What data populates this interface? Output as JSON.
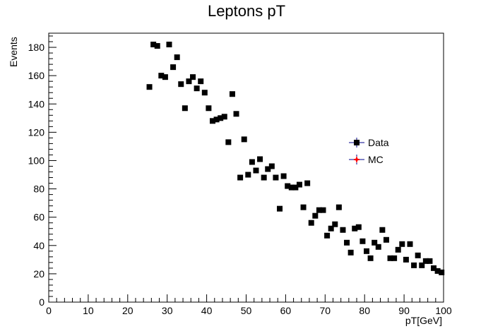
{
  "chart_data": {
    "type": "scatter",
    "title": "Leptons pT",
    "xlabel": "pT[GeV]",
    "ylabel": "Events",
    "xlim": [
      0,
      100
    ],
    "ylim": [
      0,
      190
    ],
    "xticks": [
      "0",
      "10",
      "20",
      "30",
      "40",
      "50",
      "60",
      "70",
      "80",
      "90",
      "100"
    ],
    "yticks": [
      "0",
      "20",
      "40",
      "60",
      "80",
      "100",
      "120",
      "140",
      "160",
      "180"
    ],
    "grid": false,
    "legend_position": "right",
    "series": [
      {
        "name": "Data",
        "color": "#000000",
        "marker": "square",
        "x": [
          25.5,
          26.5,
          27.5,
          28.5,
          29.5,
          30.5,
          31.5,
          32.5,
          33.5,
          34.5,
          35.5,
          36.5,
          37.5,
          38.5,
          39.5,
          40.5,
          41.5,
          42.5,
          43.5,
          44.5,
          45.5,
          46.5,
          47.5,
          48.5,
          49.5,
          50.5,
          51.5,
          52.5,
          53.5,
          54.5,
          55.5,
          56.5,
          57.5,
          58.5,
          59.5,
          60.5,
          61.5,
          62.5,
          63.5,
          64.5,
          65.5,
          66.5,
          67.5,
          68.5,
          69.5,
          70.5,
          71.5,
          72.5,
          73.5,
          74.5,
          75.5,
          76.5,
          77.5,
          78.5,
          79.5,
          80.5,
          81.5,
          82.5,
          83.5,
          84.5,
          85.5,
          86.5,
          87.5,
          88.5,
          89.5,
          90.5,
          91.5,
          92.5,
          93.5,
          94.5,
          95.5,
          96.5,
          97.5,
          98.5,
          99.5
        ],
        "y": [
          152,
          182,
          181,
          160,
          159,
          182,
          166,
          173,
          154,
          137,
          156,
          159,
          151,
          156,
          148,
          137,
          128,
          129,
          130,
          131,
          113,
          147,
          133,
          88,
          115,
          90,
          99,
          93,
          101,
          88,
          94,
          96,
          88,
          66,
          89,
          82,
          81,
          81,
          83,
          67,
          84,
          56,
          61,
          65,
          65,
          47,
          52,
          55,
          67,
          51,
          42,
          35,
          52,
          53,
          43,
          36,
          31,
          42,
          39,
          51,
          44,
          31,
          31,
          37,
          41,
          30,
          41,
          26,
          33,
          26,
          29,
          29,
          24,
          22,
          21
        ]
      },
      {
        "name": "MC",
        "color": "#ff0000",
        "marker": "cross",
        "x": [],
        "y": []
      }
    ]
  }
}
